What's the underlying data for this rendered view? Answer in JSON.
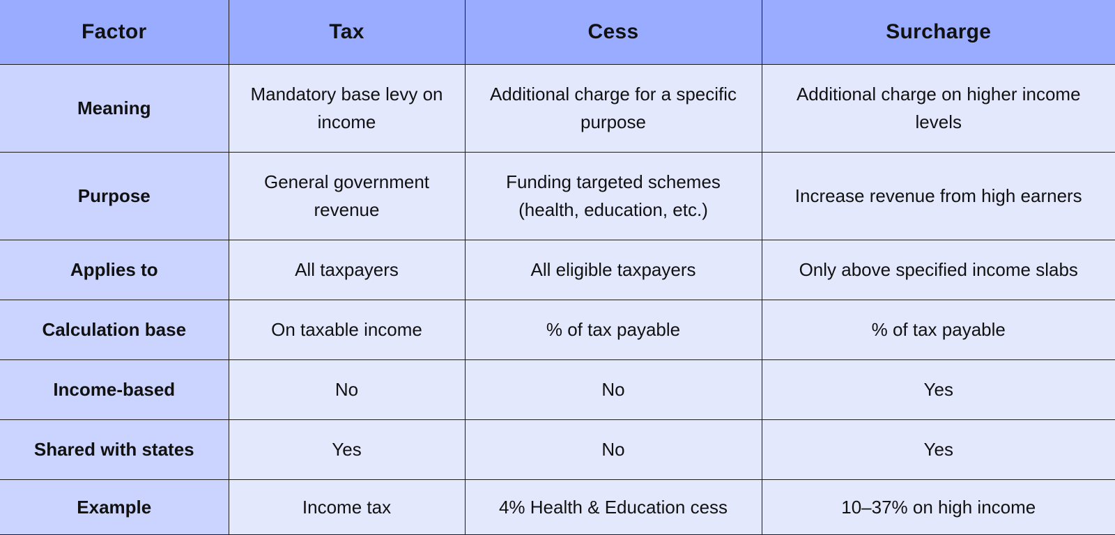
{
  "table": {
    "headers": [
      "Factor",
      "Tax",
      "Cess",
      "Surcharge"
    ],
    "rows": [
      {
        "factor": "Meaning",
        "tax": "Mandatory base levy on income",
        "cess": "Additional charge for a specific purpose",
        "surcharge": "Additional charge on higher income levels"
      },
      {
        "factor": "Purpose",
        "tax": "General government revenue",
        "cess": "Funding targeted schemes (health, education, etc.)",
        "surcharge": "Increase revenue from high earners"
      },
      {
        "factor": "Applies to",
        "tax": "All taxpayers",
        "cess": "All eligible taxpayers",
        "surcharge": "Only above specified income slabs"
      },
      {
        "factor": "Calculation base",
        "tax": "On taxable income",
        "cess": "% of tax payable",
        "surcharge": "% of tax payable"
      },
      {
        "factor": "Income-based",
        "tax": "No",
        "cess": "No",
        "surcharge": "Yes"
      },
      {
        "factor": "Shared with states",
        "tax": "Yes",
        "cess": "No",
        "surcharge": "Yes"
      },
      {
        "factor": "Example",
        "tax": "Income tax",
        "cess": "4% Health & Education cess",
        "surcharge": "10–37% on high income"
      }
    ]
  }
}
